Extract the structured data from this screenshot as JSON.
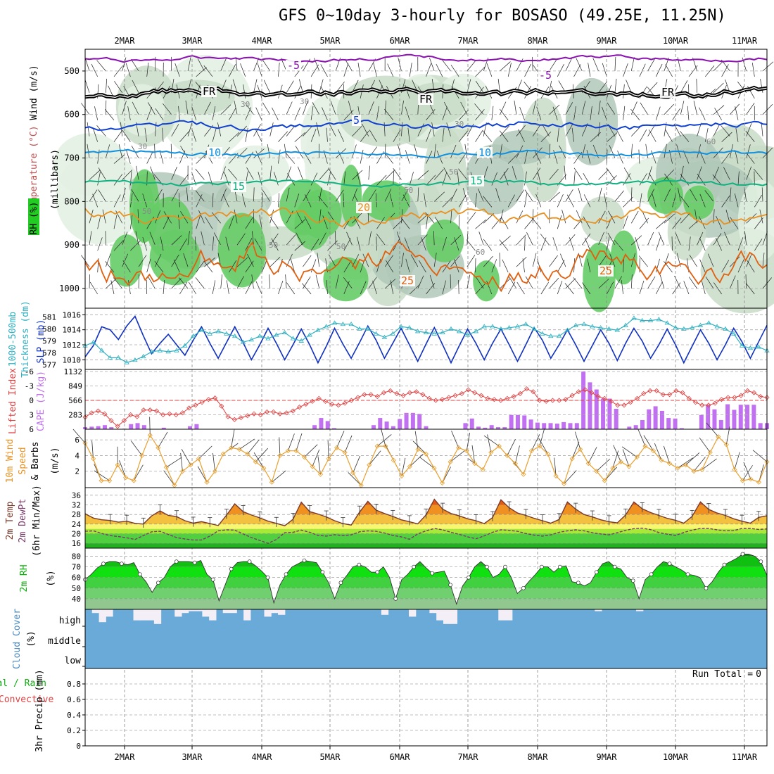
{
  "title": "GFS 0~10day 3-hourly for BOSASO (49.25E, 11.25N)",
  "dates": [
    "2MAR",
    "3MAR",
    "4MAR",
    "5MAR",
    "6MAR",
    "7MAR",
    "8MAR",
    "9MAR",
    "10MAR",
    "11MAR"
  ],
  "colors": {
    "purple": "#8a10b0",
    "black": "#000000",
    "blue": "#1040d0",
    "lightblue": "#1090e0",
    "green": "#10b080",
    "orange": "#e89020",
    "darkorange": "#e06010",
    "magenta": "#d01070",
    "rh_light": "#e2f0e2",
    "rh_mid": "#c8dcc8",
    "rh_dark": "#b0c8b8",
    "rh_green": "#66cc66",
    "slp": "#1030c0",
    "thick": "#30b0c0",
    "li": "#e04040",
    "cape": "#c070f0",
    "wind": "#e8a030",
    "cloud": "#6aaad8",
    "cloud_gap": "#f4eef6",
    "t_band1": "#e85a10",
    "t_band2": "#f09020",
    "t_band3": "#f4c040",
    "t_band4": "#f8f870",
    "t_band5": "#a8e838",
    "t_band6": "#50d040",
    "t_band7": "#20b020",
    "rh_band": "#10d010"
  },
  "run_total": {
    "label": "Run Total =",
    "value": "0"
  },
  "chart_data": [
    {
      "type": "contour",
      "name": "upper",
      "ylabel_parts": [
        "Wind (m/s)",
        "Temperature (°C)",
        "RH (%)",
        "(millibars)"
      ],
      "ylim": [
        1000,
        450
      ],
      "yticks": [
        500,
        600,
        700,
        800,
        900,
        1000
      ],
      "isotherm_labels": [
        {
          "label": "-5",
          "level": "-5"
        },
        {
          "label": "FR",
          "level": "0"
        },
        {
          "label": "5",
          "level": "5"
        },
        {
          "label": "10",
          "level": "10"
        },
        {
          "label": "15",
          "level": "15"
        },
        {
          "label": "20",
          "level": "20"
        },
        {
          "label": "25",
          "level": "25"
        }
      ],
      "rh_labels": [
        "30",
        "50",
        "60",
        "90"
      ]
    },
    {
      "type": "line",
      "name": "slp_thickness",
      "ylabel_left": "Thickness (dm)",
      "ylabel_left2": "1000-500mb",
      "ylabel_right": "SLP (mb)",
      "left_ticks": [
        "577",
        "578",
        "579",
        "580",
        "581"
      ],
      "right_ticks": [
        "1010",
        "1012",
        "1014",
        "1016"
      ],
      "slp_range": [
        1009,
        1016.5
      ],
      "thick_range": [
        576.8,
        581.5
      ],
      "slp": [
        1010.4,
        1011.9,
        1014.4,
        1014,
        1012.7,
        1014.5,
        1015.8,
        1013.2,
        1010.8,
        1012.2,
        1013.4,
        1012,
        1010.6,
        1012.6,
        1014.4,
        1012.2,
        1010.2,
        1012.3,
        1014.4,
        1012.3,
        1010,
        1012,
        1014.2,
        1012.2,
        1010,
        1012,
        1014.1,
        1012,
        1009.6,
        1011.8,
        1014.2,
        1012.1,
        1010.2,
        1012.3,
        1014.5,
        1012.6,
        1010.2,
        1012.2,
        1014.2,
        1012,
        1009.8,
        1012.1,
        1014.3,
        1012,
        1009.6,
        1011.9,
        1014.1,
        1012.2,
        1010,
        1012.2,
        1014.1,
        1012,
        1009.8,
        1012,
        1014.3,
        1012.6,
        1010.2,
        1012,
        1014,
        1012,
        1009.8,
        1011.9,
        1014,
        1012.2,
        1009.9,
        1012.2,
        1014.2,
        1012.5,
        1010.2,
        1012,
        1014.1,
        1012,
        1009.6,
        1011.8,
        1014,
        1012.2,
        1010,
        1012,
        1014.2,
        1012.4,
        1010.2,
        1012.4,
        1014.6
      ],
      "thick": [
        578.6,
        578.9,
        578.2,
        577.6,
        577.6,
        577.2,
        577.4,
        577.7,
        578.1,
        578.2,
        578.1,
        578.2,
        578.6,
        579.4,
        579.9,
        579.6,
        579.8,
        579.6,
        579.4,
        578.9,
        579.1,
        579.4,
        579.2,
        579.5,
        579.7,
        579.2,
        579.0,
        579.5,
        579.9,
        580.2,
        580.5,
        580.4,
        580.4,
        580.0,
        580.0,
        579.6,
        579.3,
        579.6,
        580.2,
        580.1,
        579.8,
        579.7,
        579.6,
        579.7,
        580.0,
        579.8,
        579.5,
        579.8,
        580.2,
        580.2,
        580.0,
        580.1,
        580.2,
        580.4,
        580.0,
        579.6,
        579.4,
        579.4,
        579.9,
        580.3,
        580.4,
        580.2,
        580.1,
        580.0,
        579.9,
        580.3,
        580.9,
        580.7,
        580.7,
        580.8,
        580.5,
        580.1,
        580.0,
        580.1,
        580.3,
        580.5,
        580.2,
        580.0,
        579.6,
        578.6,
        578.4,
        578.5,
        578.2
      ]
    },
    {
      "type": "line+bar",
      "name": "li_cape",
      "ylabel_left": "Lifted Index",
      "ylabel_right": "CAPE (J/kg)",
      "li_ticks": [
        "-6",
        "-3",
        "0",
        "3",
        "6"
      ],
      "cape_ticks": [
        "283",
        "566",
        "849",
        "1132"
      ],
      "li_range": [
        6,
        -6
      ],
      "cape_range": [
        0,
        1132
      ],
      "li": [
        3.5,
        2.6,
        2.2,
        2.8,
        4.2,
        5.4,
        4.2,
        3.0,
        3.4,
        2.0,
        2.0,
        2.2,
        3.0,
        2.8,
        3.0,
        2.6,
        1.6,
        1.0,
        0.4,
        -0.2,
        -0.5,
        1.2,
        3.4,
        4.0,
        3.6,
        3.2,
        2.8,
        3.0,
        2.4,
        2.4,
        2.8,
        2.6,
        2.2,
        1.4,
        0.8,
        0.2,
        -0.4,
        0.2,
        0.8,
        1.0,
        0.6,
        0.0,
        -0.6,
        -1.2,
        -1.2,
        -0.8,
        -1.6,
        -2.0,
        -1.4,
        -1.0,
        -1.6,
        -1.8,
        -1.2,
        -0.4,
        0.0,
        -0.2,
        -0.6,
        -1.0,
        -1.4,
        -2.2,
        -1.6,
        -1.0,
        -0.4,
        -0.2,
        0.0,
        -0.4,
        -0.8,
        -1.4,
        -2.4,
        -1.8,
        0.0,
        0.2,
        0.0,
        0.0,
        -0.2,
        -1.0,
        -1.8,
        -2.2,
        -1.6,
        -0.8,
        -0.4,
        0.2,
        1.0,
        1.0,
        0.4,
        -0.4,
        -1.4,
        -2.0,
        -2.0,
        -1.2,
        -1.2,
        -2.0,
        -1.6,
        -0.4,
        0.4,
        1.0,
        1.0,
        0.6,
        -0.2,
        -0.6,
        -0.6,
        -1.0,
        -2.0,
        -1.6,
        -0.8,
        -0.6
      ],
      "cape": [
        40,
        50,
        60,
        80,
        40,
        0,
        10,
        100,
        120,
        80,
        0,
        0,
        30,
        0,
        0,
        0,
        60,
        100,
        0,
        0,
        0,
        0,
        0,
        0,
        0,
        0,
        0,
        0,
        0,
        0,
        0,
        0,
        0,
        0,
        0,
        80,
        220,
        160,
        20,
        0,
        0,
        0,
        0,
        0,
        80,
        220,
        150,
        60,
        200,
        320,
        320,
        300,
        60,
        0,
        0,
        0,
        0,
        0,
        120,
        210,
        50,
        30,
        80,
        40,
        40,
        280,
        280,
        270,
        190,
        130,
        120,
        120,
        110,
        140,
        120,
        120,
        1130,
        920,
        780,
        600,
        600,
        400,
        0,
        50,
        80,
        180,
        390,
        450,
        360,
        220,
        210,
        20,
        0,
        0,
        280,
        480,
        390,
        180,
        490,
        380,
        480,
        480,
        480,
        120,
        120
      ]
    },
    {
      "type": "line",
      "name": "wind",
      "ylabel_parts": [
        "10m Wind",
        "Speed",
        "& Barbs",
        "(m/s)"
      ],
      "ylim": [
        0,
        7
      ],
      "yticks": [
        "2",
        "4",
        "6"
      ],
      "values": [
        5.6,
        3.6,
        0.8,
        0.8,
        2.8,
        1.2,
        0.8,
        4.0,
        6.6,
        5.0,
        2.5,
        0.2,
        2.0,
        2.8,
        3.6,
        0.6,
        2.0,
        4.2,
        5.0,
        4.8,
        4.2,
        3.2,
        2.4,
        0.6,
        4.0,
        4.6,
        4.6,
        3.8,
        2.6,
        1.6,
        3.6,
        5.0,
        4.4,
        1.8,
        0.2,
        2.8,
        5.2,
        5.2,
        3.4,
        1.4,
        2.6,
        4.8,
        4.2,
        2.4,
        0.5,
        3.2,
        5.0,
        4.6,
        3.0,
        2.2,
        4.4,
        5.2,
        4.0,
        3.0,
        1.6,
        4.6,
        5.2,
        4.2,
        1.4,
        0.4,
        3.6,
        4.8,
        3.0,
        2.0,
        0.8,
        2.4,
        3.2,
        2.6,
        3.8,
        5.2,
        4.6,
        3.4,
        3.0,
        2.4,
        2.8,
        2.0,
        2.2,
        4.4,
        6.4,
        5.4,
        2.2,
        0.8,
        1.0,
        0.6,
        3.2
      ]
    },
    {
      "type": "area",
      "name": "temp",
      "ylabel_parts": [
        "2m Temp",
        "2m DewPt",
        "(6hr Min/Max)"
      ],
      "ylim": [
        14,
        38
      ],
      "yticks": [
        "16",
        "20",
        "24",
        "28",
        "32",
        "36"
      ],
      "temp": [
        28.3,
        26.5,
        25.8,
        25.5,
        24.8,
        25.2,
        24.3,
        24.0,
        27.4,
        29.5,
        27.6,
        27.1,
        25.4,
        24.4,
        25.0,
        24.2,
        23.4,
        27.7,
        32.4,
        29.2,
        27.8,
        26.6,
        25.2,
        24.3,
        23.3,
        26.0,
        33.1,
        29.2,
        28.2,
        27.0,
        25.4,
        24.2,
        23.6,
        29.0,
        33.5,
        29.8,
        28.4,
        27.2,
        25.8,
        25.0,
        24.1,
        27.8,
        34.3,
        30.2,
        28.4,
        27.4,
        26.2,
        25.4,
        24.2,
        26.7,
        34.1,
        30.8,
        28.6,
        27.6,
        26.4,
        25.4,
        24.4,
        25.9,
        33.2,
        30.2,
        28.0,
        27.0,
        25.8,
        25.0,
        24.5,
        27.8,
        33.2,
        30.4,
        28.8,
        27.6,
        26.4,
        25.6,
        24.4,
        27.2,
        33.2,
        30.1,
        28.6,
        27.6,
        26.2,
        25.2,
        24.4,
        26.8,
        27.5
      ],
      "dew": [
        21.0,
        21.2,
        20.1,
        19.2,
        18.8,
        18.3,
        17.6,
        19.2,
        20.8,
        21.0,
        19.7,
        18.4,
        17.8,
        17.4,
        17.4,
        19.0,
        21.2,
        21.6,
        21.5,
        19.9,
        18.4,
        17.2,
        16.0,
        17.6,
        20.4,
        20.6,
        21.5,
        20.6,
        19.3,
        19.0,
        19.6,
        19.2,
        19.5,
        20.8,
        21.2,
        21.0,
        20.3,
        19.3,
        18.7,
        17.7,
        19.9,
        21.2,
        22.2,
        21.6,
        20.6,
        19.7,
        18.7,
        17.9,
        19.1,
        20.6,
        21.6,
        21.4,
        21.0,
        20.1,
        19.4,
        19.0,
        19.5,
        20.6,
        21.2,
        21.6,
        21.2,
        20.4,
        19.9,
        19.5,
        20.4,
        21.4,
        22.1,
        22.3,
        21.7,
        20.5,
        19.8,
        19.3,
        20.5,
        21.5,
        22.2,
        22.2,
        21.6,
        21.2,
        21.3,
        22.2,
        22.2,
        21.8,
        22.0
      ]
    },
    {
      "type": "area",
      "name": "rh",
      "ylabel_parts": [
        "2m RH",
        "(%)"
      ],
      "ylim": [
        30,
        85
      ],
      "yticks": [
        "40",
        "50",
        "60",
        "70",
        "80"
      ],
      "values": [
        58,
        63,
        69,
        73,
        75,
        75,
        73,
        72,
        74,
        63,
        56,
        46,
        55,
        60,
        70,
        75,
        75,
        75,
        74,
        76,
        63,
        58,
        38,
        53,
        68,
        74,
        75,
        75,
        71,
        66,
        60,
        36,
        53,
        63,
        70,
        73,
        76,
        75,
        74,
        65,
        55,
        40,
        55,
        62,
        70,
        72,
        70,
        65,
        65,
        70,
        60,
        40,
        58,
        63,
        70,
        75,
        69,
        64,
        65,
        66,
        53,
        35,
        52,
        60,
        70,
        75,
        70,
        60,
        63,
        70,
        60,
        45,
        50,
        57,
        63,
        70,
        70,
        65,
        70,
        71,
        56,
        55,
        52,
        55,
        65,
        73,
        75,
        70,
        68,
        60,
        57,
        40,
        58,
        63,
        70,
        75,
        73,
        70,
        67,
        63,
        62,
        60,
        50,
        56,
        65,
        72,
        75,
        78,
        82,
        82,
        80,
        75,
        62
      ]
    },
    {
      "type": "area",
      "name": "cloud",
      "ylabel_parts": [
        "Cloud Cover",
        "(%)"
      ],
      "levels": [
        "high",
        "middle",
        "low"
      ],
      "high": [
        100,
        80,
        30,
        60,
        100,
        100,
        100,
        40,
        40,
        40,
        20,
        100,
        100,
        60,
        80,
        90,
        90,
        60,
        40,
        100,
        80,
        80,
        100,
        40,
        100,
        100,
        60,
        80,
        70,
        100,
        100,
        100,
        100,
        100,
        100,
        100,
        100,
        100,
        100,
        100,
        100,
        100,
        100,
        70,
        100,
        100,
        100,
        60,
        100,
        100,
        80,
        40,
        20,
        20,
        100,
        100,
        100,
        100,
        100,
        100,
        40,
        40,
        100,
        100,
        100,
        100,
        100,
        100,
        100,
        100,
        100,
        100,
        100,
        100,
        90,
        100,
        100,
        100,
        100,
        100,
        90,
        100,
        100,
        100,
        100,
        100,
        100,
        100,
        100,
        100,
        100,
        100,
        100,
        100,
        100,
        100,
        100,
        100,
        100
      ]
    },
    {
      "type": "bar",
      "name": "precip",
      "ylabel_parts": [
        "Total / Rain",
        "Convective",
        "3hr Precip (mm)"
      ],
      "ylim": [
        0,
        1.0
      ],
      "yticks": [
        "0",
        "0.2",
        "0.4",
        "0.6",
        "0.8"
      ],
      "values": []
    }
  ]
}
